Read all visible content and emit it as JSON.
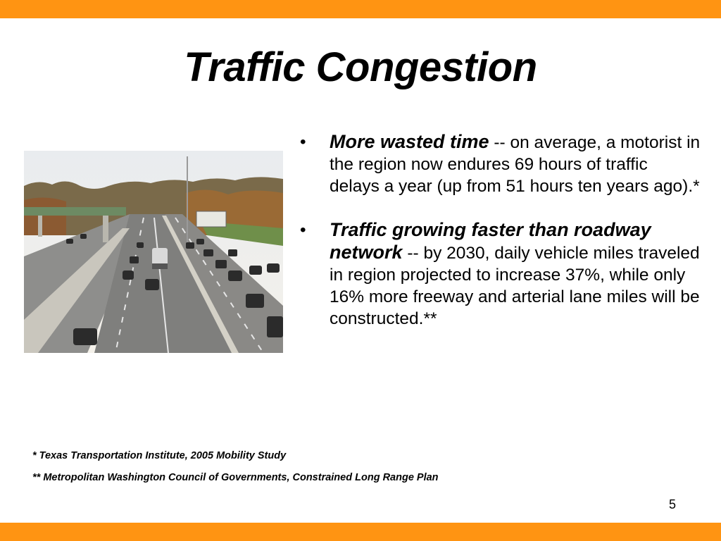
{
  "slide": {
    "title": "Traffic Congestion",
    "page_number": "5"
  },
  "image": {
    "description_icon": "highway-traffic-photo"
  },
  "bullets": [
    {
      "marker": "•",
      "lead": "More wasted time",
      "text": " -- on average, a motorist in the region now endures 69 hours of traffic delays a year (up from 51 hours ten years ago).*"
    },
    {
      "marker": "•",
      "lead": "Traffic growing faster than roadway network",
      "text": " -- by 2030, daily vehicle miles traveled in region projected to increase 37%, while only 16% more freeway and arterial lane miles will be constructed.**"
    }
  ],
  "footnotes": [
    "*   Texas Transportation Institute, 2005 Mobility Study",
    "** Metropolitan Washington Council of Governments, Constrained Long Range Plan"
  ],
  "colors": {
    "accent_bar": "#ff9412"
  }
}
